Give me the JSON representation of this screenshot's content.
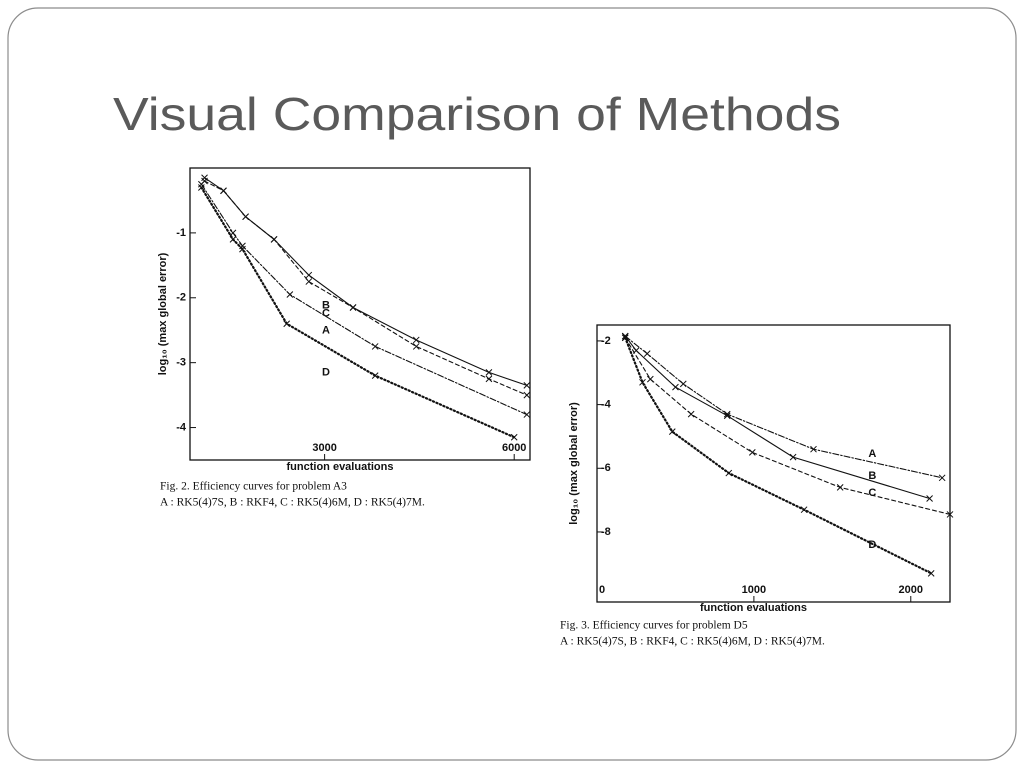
{
  "title": "Visual Comparison of Methods",
  "chart_data": [
    {
      "type": "line",
      "x_label": "function evaluations",
      "y_label": "log₁₀ (max global error)",
      "caption": [
        "Fig. 2. Efficiency curves for problem A3",
        "A : RK5(4)7S, B : RKF4, C : RK5(4)6M, D : RK5(4)7M."
      ],
      "xlim": [
        870,
        6250
      ],
      "xticks": [
        3000,
        6000
      ],
      "ylim": [
        -4.5,
        0
      ],
      "yticks": [
        -1,
        -2,
        -3,
        -4
      ],
      "series": [
        {
          "name": "A",
          "color": "#111111",
          "style": "dashdot",
          "x": [
            1050,
            1550,
            1700,
            2450,
            3800,
            6200
          ],
          "values": [
            -0.25,
            -1.0,
            -1.2,
            -1.95,
            -2.75,
            -3.8
          ]
        },
        {
          "name": "B",
          "color": "#111111",
          "style": "solid",
          "x": [
            1100,
            1400,
            1750,
            2200,
            2750,
            3450,
            4450,
            5600,
            6200
          ],
          "values": [
            -0.15,
            -0.35,
            -0.75,
            -1.1,
            -1.65,
            -2.15,
            -2.65,
            -3.15,
            -3.35
          ]
        },
        {
          "name": "C",
          "color": "#111111",
          "style": "dashed",
          "x": [
            1100,
            1400,
            1750,
            2200,
            2750,
            3450,
            4450,
            5600,
            6200
          ],
          "values": [
            -0.2,
            -0.35,
            -0.75,
            -1.1,
            -1.75,
            -2.15,
            -2.75,
            -3.25,
            -3.5
          ]
        },
        {
          "name": "D",
          "color": "#111111",
          "style": "dotted",
          "x": [
            1050,
            1550,
            1700,
            2400,
            3800,
            6000
          ],
          "values": [
            -0.3,
            -1.1,
            -1.25,
            -2.4,
            -3.2,
            -4.15
          ]
        }
      ]
    },
    {
      "type": "line",
      "x_label": "function evaluations",
      "y_label": "log₁₀ (max global error)",
      "caption": [
        "Fig. 3. Efficiency curves for problem D5",
        "A : RK5(4)7S, B : RKF4, C : RK5(4)6M, D : RK5(4)7M."
      ],
      "xlim": [
        0,
        2250
      ],
      "xticks": [
        0,
        1000,
        2000
      ],
      "ylim": [
        -10.2,
        -1.5
      ],
      "yticks": [
        -2,
        -4,
        -6,
        -8
      ],
      "series": [
        {
          "name": "A",
          "color": "#111111",
          "style": "dashdot",
          "x": [
            180,
            320,
            550,
            830,
            1380,
            2200
          ],
          "values": [
            -1.85,
            -2.4,
            -3.35,
            -4.3,
            -5.4,
            -6.3
          ]
        },
        {
          "name": "B",
          "color": "#111111",
          "style": "solid",
          "x": [
            180,
            250,
            500,
            830,
            1250,
            2120
          ],
          "values": [
            -1.85,
            -2.3,
            -3.45,
            -4.35,
            -5.65,
            -6.95
          ]
        },
        {
          "name": "C",
          "color": "#111111",
          "style": "dashed",
          "x": [
            180,
            340,
            600,
            990,
            1550,
            2250
          ],
          "values": [
            -1.9,
            -3.2,
            -4.3,
            -5.5,
            -6.6,
            -7.45
          ]
        },
        {
          "name": "D",
          "color": "#111111",
          "style": "dotted",
          "x": [
            180,
            290,
            480,
            840,
            1320,
            2130
          ],
          "values": [
            -1.9,
            -3.3,
            -4.85,
            -6.15,
            -7.3,
            -9.3
          ]
        }
      ]
    }
  ]
}
